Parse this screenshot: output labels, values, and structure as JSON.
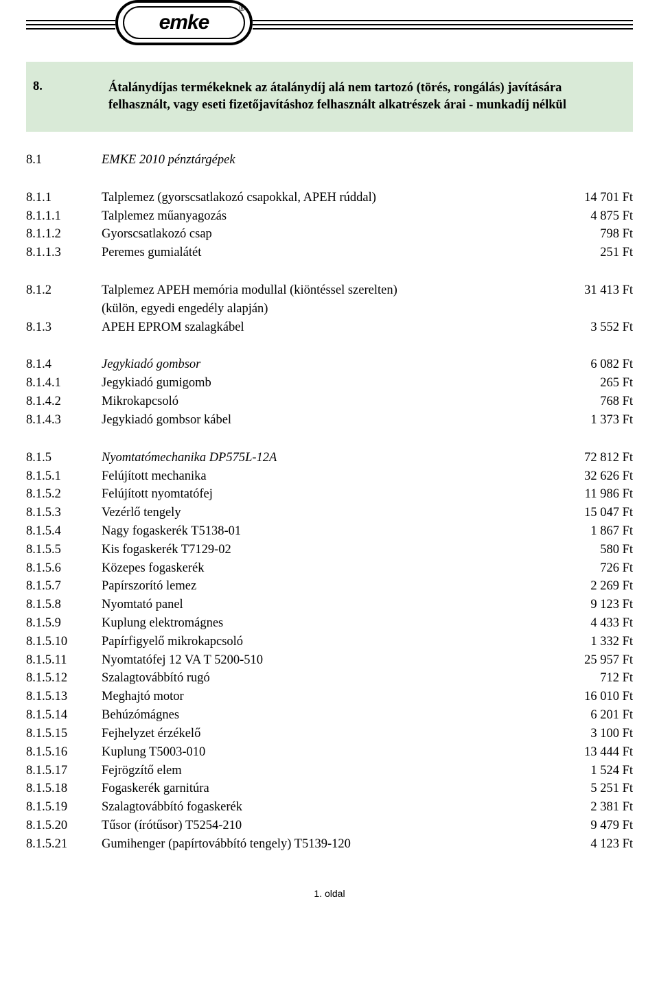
{
  "logo": {
    "text": "emke",
    "reg": "®"
  },
  "header": {
    "code": "8.",
    "text": "Átalánydíjas termékeknek az átalánydíj alá nem tartozó (törés, rongálás) javítására felhasznált, vagy eseti fizetőjavításhoz felhasznált alkatrészek árai - munkadíj nélkül"
  },
  "sectionHead": {
    "code": "8.1",
    "desc": "EMKE 2010 pénztárgépek"
  },
  "groups": [
    [
      {
        "code": "8.1.1",
        "desc": "Talplemez (gyorscsatlakozó csapokkal, APEH rúddal)",
        "price": "14 701 Ft"
      },
      {
        "code": "8.1.1.1",
        "desc": "Talplemez műanyagozás",
        "price": "4 875 Ft"
      },
      {
        "code": "8.1.1.2",
        "desc": "Gyorscsatlakozó csap",
        "price": "798 Ft"
      },
      {
        "code": "8.1.1.3",
        "desc": "Peremes gumialátét",
        "price": "251 Ft"
      }
    ],
    [
      {
        "code": "8.1.2",
        "desc": "Talplemez APEH memória modullal (kiöntéssel szerelten)",
        "price": "31 413 Ft"
      },
      {
        "code": "",
        "desc": "(külön, egyedi engedély alapján)",
        "price": ""
      },
      {
        "code": "8.1.3",
        "desc": "APEH EPROM szalagkábel",
        "price": "3 552 Ft"
      }
    ],
    [
      {
        "code": "8.1.4",
        "desc": "Jegykiadó gombsor",
        "price": "6 082 Ft",
        "italic": true
      },
      {
        "code": "8.1.4.1",
        "desc": "Jegykiadó gumigomb",
        "price": "265 Ft"
      },
      {
        "code": "8.1.4.2",
        "desc": "Mikrokapcsoló",
        "price": "768 Ft"
      },
      {
        "code": "8.1.4.3",
        "desc": "Jegykiadó gombsor kábel",
        "price": "1 373 Ft"
      }
    ],
    [
      {
        "code": "8.1.5",
        "desc": "Nyomtatómechanika DP575L-12A",
        "price": "72 812 Ft",
        "italic": true
      },
      {
        "code": "8.1.5.1",
        "desc": "Felújított mechanika",
        "price": "32 626 Ft"
      },
      {
        "code": "8.1.5.2",
        "desc": "Felújított nyomtatófej",
        "price": "11 986 Ft"
      },
      {
        "code": "8.1.5.3",
        "desc": "Vezérlő tengely",
        "price": "15 047 Ft"
      },
      {
        "code": "8.1.5.4",
        "desc": "Nagy fogaskerék T5138-01",
        "price": "1 867 Ft"
      },
      {
        "code": "8.1.5.5",
        "desc": "Kis fogaskerék T7129-02",
        "price": "580 Ft"
      },
      {
        "code": "8.1.5.6",
        "desc": "Közepes fogaskerék",
        "price": "726 Ft"
      },
      {
        "code": "8.1.5.7",
        "desc": "Papírszorító lemez",
        "price": "2 269 Ft"
      },
      {
        "code": "8.1.5.8",
        "desc": "Nyomtató panel",
        "price": "9 123 Ft"
      },
      {
        "code": "8.1.5.9",
        "desc": "Kuplung elektromágnes",
        "price": "4 433 Ft"
      },
      {
        "code": "8.1.5.10",
        "desc": "Papírfigyelő mikrokapcsoló",
        "price": "1 332 Ft"
      },
      {
        "code": "8.1.5.11",
        "desc": "Nyomtatófej 12 VA T 5200-510",
        "price": "25 957 Ft"
      },
      {
        "code": "8.1.5.12",
        "desc": "Szalagtovábbító rugó",
        "price": "712 Ft"
      },
      {
        "code": "8.1.5.13",
        "desc": "Meghajtó motor",
        "price": "16 010 Ft"
      },
      {
        "code": "8.1.5.14",
        "desc": "Behúzómágnes",
        "price": "6 201 Ft"
      },
      {
        "code": "8.1.5.15",
        "desc": "Fejhelyzet érzékelő",
        "price": "3 100 Ft"
      },
      {
        "code": "8.1.5.16",
        "desc": "Kuplung T5003-010",
        "price": "13 444 Ft"
      },
      {
        "code": "8.1.5.17",
        "desc": "Fejrögzítő elem",
        "price": "1 524 Ft"
      },
      {
        "code": "8.1.5.18",
        "desc": "Fogaskerék garnitúra",
        "price": "5 251 Ft"
      },
      {
        "code": "8.1.5.19",
        "desc": "Szalagtovábbító fogaskerék",
        "price": "2 381 Ft"
      },
      {
        "code": "8.1.5.20",
        "desc": "Tűsor (írótűsor) T5254-210",
        "price": "9 479 Ft"
      },
      {
        "code": "8.1.5.21",
        "desc": "Gumihenger (papírtovábbító tengely) T5139-120",
        "price": "4 123 Ft"
      }
    ]
  ],
  "footer": "1. oldal"
}
